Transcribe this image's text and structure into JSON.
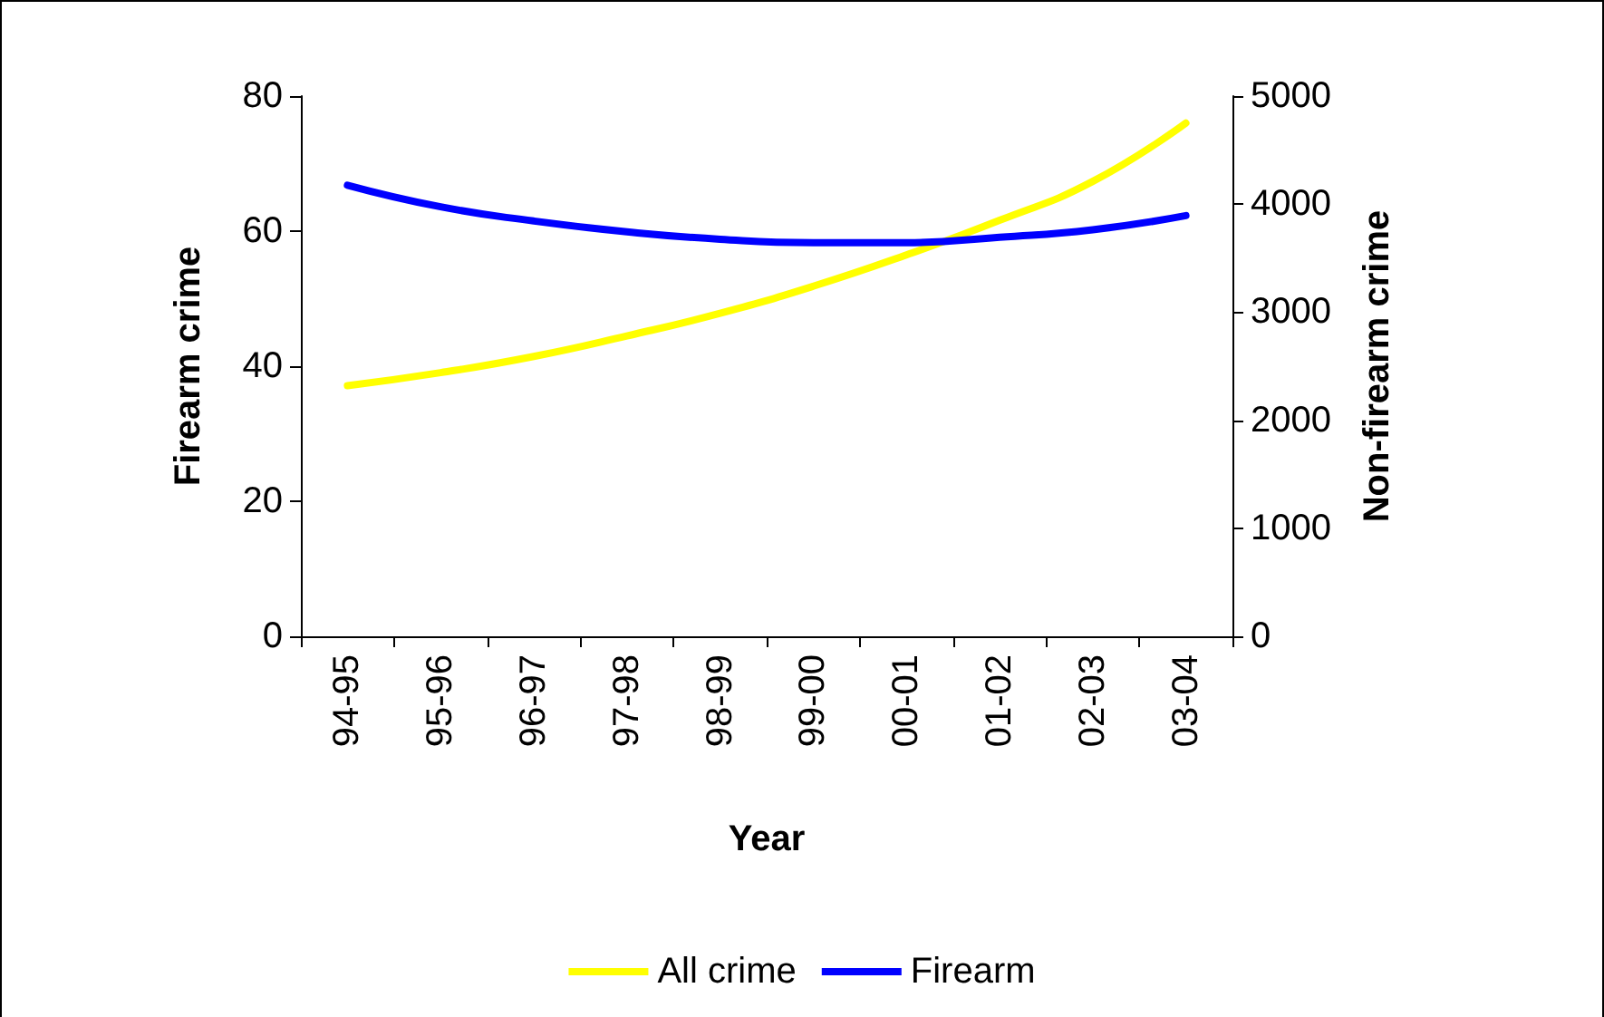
{
  "chart_data": {
    "type": "line",
    "xlabel": "Year",
    "ylabel": "Firearm crime",
    "y2label": "Non-firearm crime",
    "categories": [
      "94-95",
      "95-96",
      "96-97",
      "97-98",
      "98-99",
      "99-00",
      "00-01",
      "01-02",
      "02-03",
      "03-04"
    ],
    "series": [
      {
        "name": "All crime",
        "color": "#ffff00",
        "axis": "y2",
        "values": [
          2320,
          2440,
          2590,
          2780,
          2990,
          3240,
          3530,
          3850,
          4210,
          4750
        ]
      },
      {
        "name": "Firearm",
        "color": "#0000ff",
        "values": [
          66.8,
          63.6,
          61.5,
          59.9,
          58.8,
          58.3,
          58.3,
          59.1,
          60.2,
          62.3
        ]
      }
    ],
    "ylim": [
      0,
      80
    ],
    "yticks": [
      0,
      20,
      40,
      60,
      80
    ],
    "y2lim": [
      0,
      5000
    ],
    "y2ticks": [
      0,
      1000,
      2000,
      3000,
      4000,
      5000
    ],
    "grid": false,
    "legend": "bottom",
    "marker": "none",
    "line_style": "solid"
  }
}
